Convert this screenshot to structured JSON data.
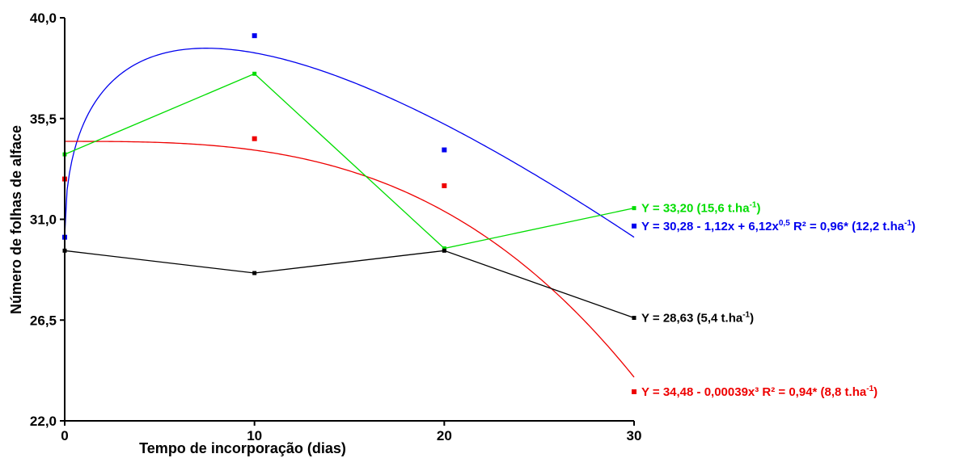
{
  "chart_data": {
    "type": "line",
    "xlabel": "Tempo de incorporação (dias)",
    "ylabel": "Número de folhas de alface",
    "xlim": [
      0,
      30
    ],
    "ylim": [
      22.0,
      40.0
    ],
    "x_ticks": [
      "0",
      "10",
      "20",
      "30"
    ],
    "y_ticks": [
      "22,0",
      "26,5",
      "31,0",
      "35,5",
      "40,0"
    ],
    "grid": false,
    "series": [
      {
        "color": "#00dd00",
        "x": [
          0,
          10,
          20,
          30
        ],
        "values": [
          33.9,
          37.5,
          29.7,
          31.5
        ],
        "equation": "Y = 33,20   (15,6 t.ha",
        "eq_sup": "-1",
        "eq_tail": ")"
      },
      {
        "color": "#0000ee",
        "x": [
          0,
          10,
          20,
          30
        ],
        "values": [
          30.2,
          39.2,
          34.1,
          30.7
        ],
        "equation": "Y = 30,28 - 1,12x + 6,12x",
        "eq_sup": "0,5",
        "eq_tail": "  R² = 0,96*   (12,2 t.ha",
        "eq_sup2": "-1",
        "eq_tail2": ")"
      },
      {
        "color": "#000000",
        "x": [
          0,
          10,
          20,
          30
        ],
        "values": [
          29.6,
          28.6,
          29.6,
          26.6
        ],
        "equation": "Y = 28,63   (5,4 t.ha",
        "eq_sup": "-1",
        "eq_tail": ")"
      },
      {
        "color": "#ee0000",
        "x": [
          0,
          10,
          20,
          30
        ],
        "values": [
          32.8,
          34.6,
          32.5,
          23.3
        ],
        "equation": "Y = 34,48 - 0,00039x³   R² = 0,94*   (8,8 t.ha",
        "eq_sup": "-1",
        "eq_tail": ")"
      }
    ]
  }
}
